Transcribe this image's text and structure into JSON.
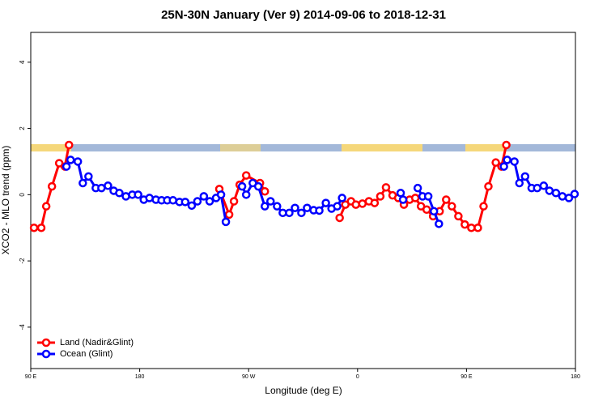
{
  "chart_data": {
    "type": "line",
    "title": "25N-30N January (Ver 9)   2014-09-06 to 2018-12-31",
    "x_label": "Longitude (deg E)",
    "y_label": "XCO2 - MLO trend (ppm)",
    "xlim": [
      90,
      540
    ],
    "xticks": [
      {
        "value": 90,
        "label": "90 E"
      },
      180,
      {
        "value": 270,
        "label": "90 W"
      },
      {
        "value": 360,
        "label": "0"
      },
      {
        "value": 450,
        "label": "90 E"
      },
      {
        "value": 540,
        "label": "180"
      }
    ],
    "ylim": [
      -5.25,
      4.9
    ],
    "yticks": [
      -4,
      -2,
      0,
      2,
      4
    ],
    "legend": "bottom-left",
    "series": [
      {
        "name": "Land (Nadir&Glint)",
        "color": "#ff0000",
        "x": [
          92.7,
          98.7,
          102.8,
          107.5,
          113.5,
          118.2,
          121.6,
          null,
          245.8,
          253.9,
          257.9,
          262.6,
          268,
          279.4,
          283.4,
          null,
          345.2,
          349.9,
          354.6,
          358.6,
          364,
          369.4,
          374.1,
          378.8,
          383.5,
          388.9,
          393.6,
          398.3,
          403,
          407.7,
          412.4,
          417.1,
          422.4,
          427.8,
          433.2,
          437.9,
          443.3,
          448.6,
          454,
          459.4,
          464.1,
          468.1,
          474.2,
          478.9,
          482.9
        ],
        "values": [
          -1.0,
          -1.0,
          -0.35,
          0.25,
          0.95,
          0.85,
          1.5,
          null,
          0.17,
          -0.6,
          -0.2,
          0.3,
          0.58,
          0.35,
          0.1,
          null,
          -0.7,
          -0.3,
          -0.2,
          -0.3,
          -0.27,
          -0.2,
          -0.25,
          -0.05,
          0.22,
          -0.02,
          -0.1,
          -0.3,
          -0.15,
          -0.1,
          -0.35,
          -0.45,
          -0.65,
          -0.5,
          -0.15,
          -0.35,
          -0.65,
          -0.9,
          -1.0,
          -1.0,
          -0.35,
          0.25,
          0.97,
          0.85,
          1.5
        ]
      },
      {
        "name": "Ocean (Glint)",
        "color": "#0000ff",
        "x": [
          119.5,
          122.9,
          128.9,
          133,
          137.7,
          143.7,
          148.4,
          153.8,
          158.5,
          163.2,
          168.6,
          173.9,
          178.7,
          183.4,
          188.1,
          193.4,
          198.1,
          202.8,
          207.5,
          212.9,
          217.6,
          223,
          227.7,
          233,
          237.8,
          243.1,
          247.2,
          251.2,
          null,
          264.6,
          268,
          273.4,
          278,
          283.4,
          288.1,
          293.5,
          298.2,
          303.6,
          308.3,
          313.6,
          318.3,
          323.7,
          328.4,
          333.8,
          338.5,
          343.2,
          347.2,
          null,
          395.6,
          397.6,
          null,
          409.7,
          413.7,
          418.4,
          423.1,
          427.2,
          null,
          480.9,
          483.6,
          489.6,
          493.7,
          498.4,
          503.8,
          508.4,
          513.8,
          518.5,
          523.9,
          529.2,
          534.6,
          539.3
        ],
        "values": [
          0.85,
          1.05,
          1.0,
          0.35,
          0.55,
          0.2,
          0.2,
          0.27,
          0.12,
          0.05,
          -0.05,
          0.0,
          0.0,
          -0.15,
          -0.1,
          -0.15,
          -0.17,
          -0.17,
          -0.17,
          -0.22,
          -0.22,
          -0.33,
          -0.2,
          -0.05,
          -0.2,
          -0.1,
          0.0,
          -0.82,
          null,
          0.25,
          0.0,
          0.35,
          0.25,
          -0.35,
          -0.2,
          -0.35,
          -0.55,
          -0.55,
          -0.4,
          -0.55,
          -0.4,
          -0.47,
          -0.48,
          -0.25,
          -0.42,
          -0.35,
          -0.1,
          null,
          0.05,
          -0.15,
          null,
          0.2,
          -0.05,
          -0.05,
          -0.5,
          -0.88,
          null,
          0.85,
          1.05,
          1.0,
          0.35,
          0.55,
          0.2,
          0.2,
          0.27,
          0.12,
          0.05,
          -0.05,
          -0.1,
          0.02
        ]
      }
    ]
  }
}
